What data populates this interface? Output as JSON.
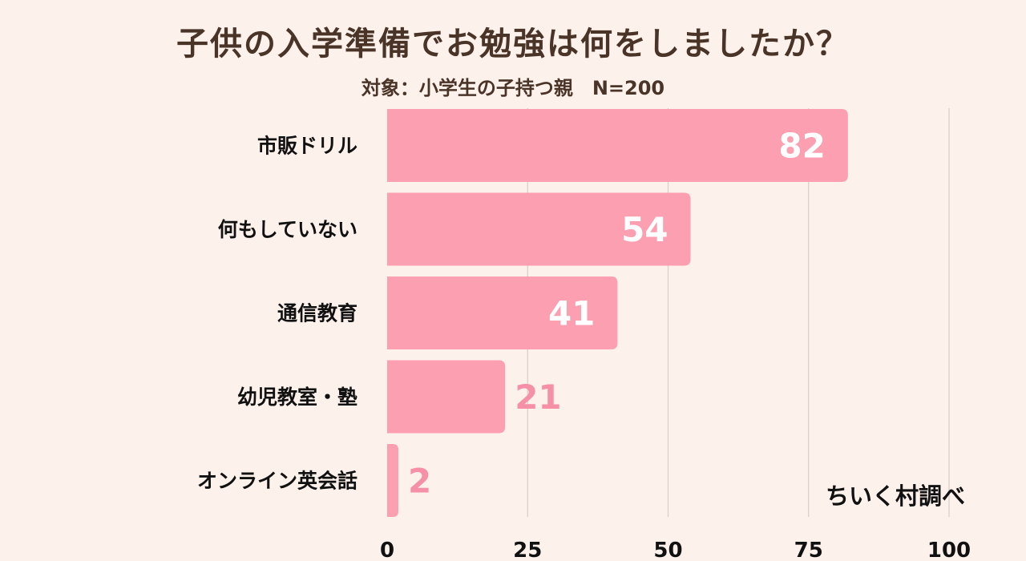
{
  "chart_data": {
    "type": "bar",
    "orientation": "horizontal",
    "title": "子供の入学準備でお勉強は何をしましたか？",
    "subtitle": "対象：小学生の子持つ親　N=200",
    "categories": [
      "市販ドリル",
      "何もしていない",
      "通信教育",
      "幼児教室・塾",
      "オンライン英会話"
    ],
    "values": [
      82,
      54,
      41,
      21,
      2
    ],
    "value_labels": [
      "82",
      "54",
      "41",
      "21",
      "2"
    ],
    "xlim": [
      0,
      100
    ],
    "xticks": [
      0,
      25,
      50,
      75,
      100
    ],
    "xtick_labels": [
      "0",
      "25",
      "50",
      "75",
      "100"
    ],
    "grid": true,
    "bar_color": "#fc9fb0",
    "label_color_inside": "#ffffff",
    "label_color_outside": "#f690a6",
    "grid_color": "#d7cdc8"
  },
  "credit": "ちいく村調べ"
}
